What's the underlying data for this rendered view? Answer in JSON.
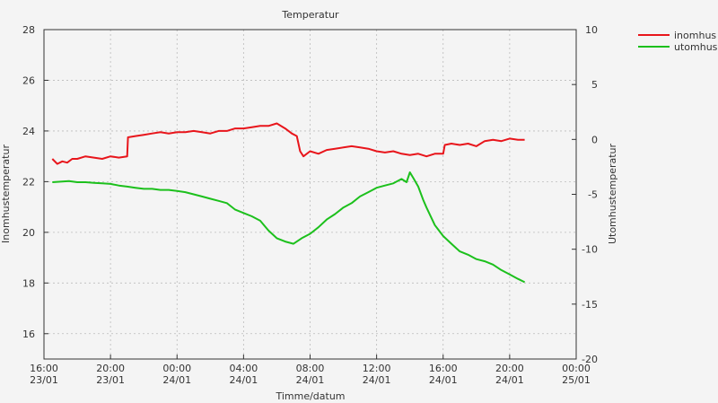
{
  "chart_data": {
    "type": "line",
    "title": "Temperatur",
    "xlabel": "Timme/datum",
    "ylabel_left": "Inomhustemperatur",
    "ylabel_right": "Utomhustemperatur",
    "xlim": [
      0,
      32
    ],
    "ylim_left": [
      15,
      28
    ],
    "ylim_right": [
      -20,
      10
    ],
    "x_ticks": [
      {
        "x": 0,
        "time": "16:00",
        "date": "23/01"
      },
      {
        "x": 4,
        "time": "20:00",
        "date": "23/01"
      },
      {
        "x": 8,
        "time": "00:00",
        "date": "24/01"
      },
      {
        "x": 12,
        "time": "04:00",
        "date": "24/01"
      },
      {
        "x": 16,
        "time": "08:00",
        "date": "24/01"
      },
      {
        "x": 20,
        "time": "12:00",
        "date": "24/01"
      },
      {
        "x": 24,
        "time": "16:00",
        "date": "24/01"
      },
      {
        "x": 28,
        "time": "20:00",
        "date": "24/01"
      },
      {
        "x": 32,
        "time": "00:00",
        "date": "25/01"
      }
    ],
    "y_left_ticks": [
      16,
      18,
      20,
      22,
      24,
      26,
      28
    ],
    "y_right_ticks": [
      -20,
      -15,
      -10,
      -5,
      0,
      5,
      10
    ],
    "grid": true,
    "legend_position": "outside-top-right",
    "series": [
      {
        "name": "inomhus",
        "axis": "left",
        "color": "#e8151b",
        "x": [
          0.5,
          0.8,
          1.1,
          1.4,
          1.7,
          2.0,
          2.5,
          3.0,
          3.5,
          4.0,
          4.5,
          5.0,
          5.05,
          5.5,
          6.0,
          6.5,
          7.0,
          7.5,
          8.0,
          8.5,
          9.0,
          9.5,
          10.0,
          10.5,
          11.0,
          11.5,
          12.0,
          12.5,
          13.0,
          13.5,
          14.0,
          14.5,
          14.9,
          15.2,
          15.4,
          15.6,
          16.0,
          16.5,
          17.0,
          17.5,
          18.0,
          18.5,
          19.0,
          19.5,
          20.0,
          20.5,
          21.0,
          21.5,
          22.0,
          22.5,
          23.0,
          23.5,
          24.0,
          24.1,
          24.5,
          25.0,
          25.5,
          26.0,
          26.5,
          27.0,
          27.5,
          28.0,
          28.5,
          28.9
        ],
        "y": [
          22.9,
          22.7,
          22.8,
          22.75,
          22.9,
          22.9,
          23.0,
          22.95,
          22.9,
          23.0,
          22.95,
          23.0,
          23.75,
          23.8,
          23.85,
          23.9,
          23.95,
          23.9,
          23.95,
          23.95,
          24.0,
          23.95,
          23.9,
          24.0,
          24.0,
          24.1,
          24.1,
          24.15,
          24.2,
          24.2,
          24.3,
          24.1,
          23.9,
          23.8,
          23.2,
          23.0,
          23.2,
          23.1,
          23.25,
          23.3,
          23.35,
          23.4,
          23.35,
          23.3,
          23.2,
          23.15,
          23.2,
          23.1,
          23.05,
          23.1,
          23.0,
          23.1,
          23.1,
          23.45,
          23.5,
          23.45,
          23.5,
          23.4,
          23.6,
          23.65,
          23.6,
          23.7,
          23.65,
          23.65
        ]
      },
      {
        "name": "utomhus",
        "axis": "right",
        "color": "#1cc01c",
        "x": [
          0.5,
          1.0,
          1.5,
          2.0,
          2.5,
          3.0,
          3.5,
          4.0,
          4.5,
          5.0,
          5.5,
          6.0,
          6.5,
          7.0,
          7.5,
          8.0,
          8.5,
          9.0,
          9.5,
          10.0,
          10.5,
          11.0,
          11.5,
          12.0,
          12.5,
          13.0,
          13.5,
          14.0,
          14.5,
          15.0,
          15.5,
          16.0,
          16.5,
          17.0,
          17.5,
          18.0,
          18.5,
          19.0,
          19.5,
          20.0,
          20.5,
          21.0,
          21.5,
          21.8,
          22.0,
          22.2,
          22.5,
          22.8,
          23.0,
          23.5,
          24.0,
          24.5,
          25.0,
          25.5,
          26.0,
          26.5,
          27.0,
          27.5,
          28.0,
          28.5,
          28.9
        ],
        "y": [
          -3.9,
          -3.85,
          -3.8,
          -3.9,
          -3.9,
          -3.95,
          -4.0,
          -4.05,
          -4.2,
          -4.3,
          -4.4,
          -4.5,
          -4.5,
          -4.6,
          -4.6,
          -4.7,
          -4.8,
          -5.0,
          -5.2,
          -5.4,
          -5.6,
          -5.8,
          -6.4,
          -6.7,
          -7.0,
          -7.4,
          -8.3,
          -9.0,
          -9.3,
          -9.5,
          -9.0,
          -8.6,
          -8.0,
          -7.3,
          -6.8,
          -6.2,
          -5.8,
          -5.2,
          -4.8,
          -4.4,
          -4.2,
          -4.0,
          -3.6,
          -3.9,
          -3.0,
          -3.5,
          -4.3,
          -5.5,
          -6.2,
          -7.8,
          -8.8,
          -9.5,
          -10.2,
          -10.5,
          -10.9,
          -11.1,
          -11.4,
          -11.9,
          -12.3,
          -12.7,
          -13.0
        ]
      }
    ]
  }
}
